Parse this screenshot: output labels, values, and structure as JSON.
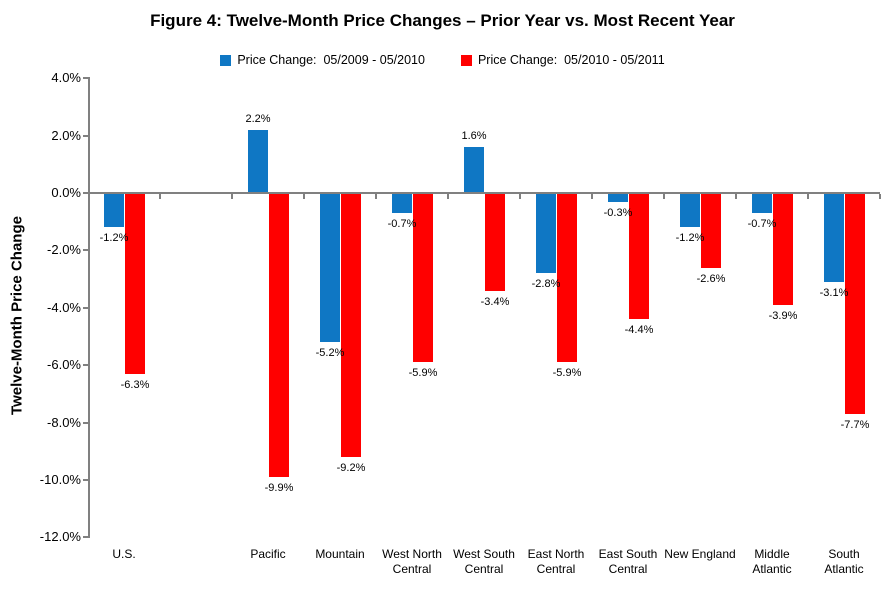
{
  "chart_data": {
    "type": "bar",
    "title": "Figure 4: Twelve-Month Price Changes – Prior Year vs. Most Recent Year",
    "ylabel": "Twelve-Month Price Change",
    "xlabel": "",
    "categories": [
      "U.S.",
      "Pacific",
      "Mountain",
      "West North Central",
      "West South Central",
      "East North Central",
      "East South Central",
      "New England",
      "Middle Atlantic",
      "South Atlantic"
    ],
    "category_display_labels": [
      "U.S.",
      "Pacific",
      "Mountain",
      "West North\nCentral",
      "West South\nCentral",
      "East North\nCentral",
      "East South\nCentral",
      "New England",
      "Middle\nAtlantic",
      "South\nAtlantic"
    ],
    "series": [
      {
        "name": "Price Change:  05/2009 - 05/2010",
        "color": "#0F77C4",
        "values": [
          -1.2,
          2.2,
          -5.2,
          -0.7,
          1.6,
          -2.8,
          -0.3,
          -1.2,
          -0.7,
          -3.1
        ]
      },
      {
        "name": "Price Change:  05/2010 - 05/2011",
        "color": "#FF0000",
        "values": [
          -6.3,
          -9.9,
          -9.2,
          -5.9,
          -3.4,
          -5.9,
          -4.4,
          -2.6,
          -3.9,
          -7.7
        ]
      }
    ],
    "ylim": [
      -12,
      4
    ],
    "ytick_values": [
      4,
      2,
      0,
      -2,
      -4,
      -6,
      -8,
      -10,
      -12
    ],
    "ytick_labels": [
      "4.0%",
      "2.0%",
      "0.0%",
      "-2.0%",
      "-4.0%",
      "-6.0%",
      "-8.0%",
      "-10.0%",
      "-12.0%"
    ],
    "grid": false,
    "legend_position": "top",
    "data_labels": true,
    "value_suffix": "%",
    "gap_after_first_category": true,
    "axis_color": "#808080"
  }
}
